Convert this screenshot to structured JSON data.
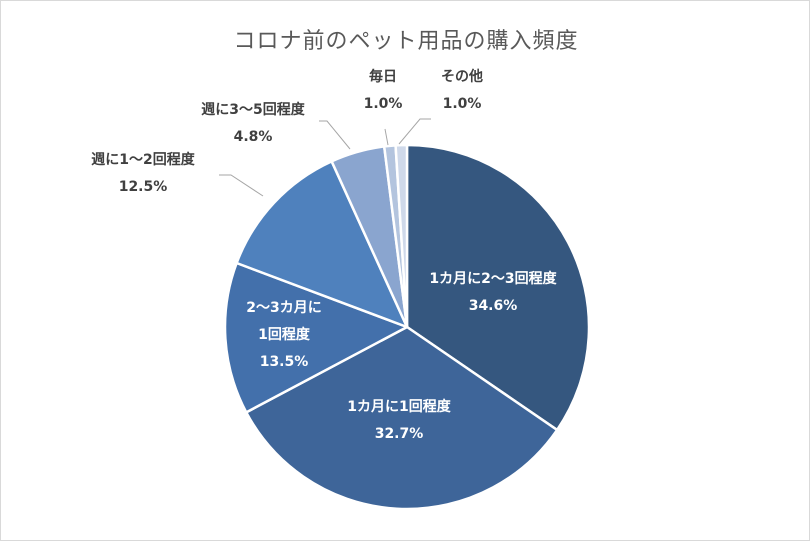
{
  "chart_data": {
    "type": "pie",
    "title": "コロナ前のペット用品の購入頻度",
    "categories": [
      "1カ月に2～3回程度",
      "1カ月に1回程度",
      "2～3カ月に1回程度",
      "週に1～2回程度",
      "週に3～5回程度",
      "毎日",
      "その他"
    ],
    "values": [
      34.6,
      32.7,
      13.5,
      12.5,
      4.8,
      1.0,
      1.0
    ],
    "value_labels": [
      "34.6%",
      "32.7%",
      "13.5%",
      "12.5%",
      "4.8%",
      "1.0%",
      "1.0%"
    ],
    "label_lines": [
      [
        "1カ月に2～3回程度",
        "34.6%"
      ],
      [
        "1カ月に1回程度",
        "32.7%"
      ],
      [
        "2～3カ月に",
        "1回程度",
        "13.5%"
      ],
      [
        "週に1～2回程度",
        "12.5%"
      ],
      [
        "週に3～5回程度",
        "4.8%"
      ],
      [
        "毎日",
        "1.0%"
      ],
      [
        "その他",
        "1.0%"
      ]
    ],
    "colors": [
      "#35577f",
      "#3e6599",
      "#4370ab",
      "#4f81bd",
      "#8aa5cf",
      "#b3c4de",
      "#cfd9ea"
    ],
    "start_angle_deg": 0,
    "direction": "clockwise",
    "legend": "none"
  }
}
